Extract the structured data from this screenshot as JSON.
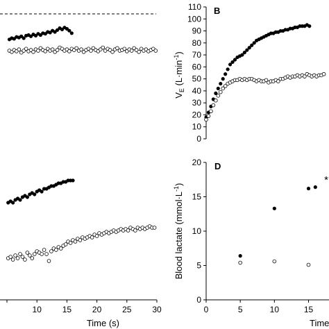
{
  "chart_data": [
    {
      "panel": "A",
      "panel_letter_visible": false,
      "type": "scatter",
      "xlabel": "",
      "ylabel": "",
      "xlim": [
        5,
        30
      ],
      "reference_line": {
        "style": "dashed"
      },
      "series": [
        {
          "marker": "filled",
          "x": [
            5.4,
            5.8,
            6.2,
            6.6,
            7.0,
            7.4,
            7.8,
            8.2,
            8.6,
            9.0,
            9.4,
            9.8,
            10.2,
            10.6,
            11.0,
            11.4,
            11.8,
            12.2,
            12.6,
            13.0,
            13.4,
            13.8,
            14.2,
            14.6,
            15.0,
            15.4,
            15.8
          ],
          "rel": [
            0.48,
            0.5,
            0.49,
            0.52,
            0.51,
            0.53,
            0.5,
            0.54,
            0.55,
            0.53,
            0.56,
            0.54,
            0.57,
            0.55,
            0.58,
            0.57,
            0.6,
            0.59,
            0.62,
            0.6,
            0.63,
            0.66,
            0.64,
            0.67,
            0.65,
            0.62,
            0.58
          ]
        },
        {
          "marker": "open",
          "x": [
            5.4,
            5.8,
            6.2,
            6.6,
            7.0,
            7.4,
            7.8,
            8.2,
            8.6,
            9.0,
            9.4,
            9.8,
            10.2,
            10.6,
            11.0,
            11.4,
            11.8,
            12.2,
            12.6,
            13.0,
            13.4,
            13.8,
            14.2,
            14.6,
            15.0,
            15.4,
            15.8,
            16.2,
            16.6,
            17.0,
            17.4,
            17.8,
            18.2,
            18.6,
            19.0,
            19.4,
            19.8,
            20.2,
            20.6,
            21.0,
            21.4,
            21.8,
            22.2,
            22.6,
            23.0,
            23.4,
            23.8,
            24.2,
            24.6,
            25.0,
            25.4,
            25.8,
            26.2,
            26.6,
            27.0,
            27.4,
            27.8,
            28.2,
            28.6,
            29.0,
            29.4,
            29.8
          ],
          "rel": [
            0.3,
            0.28,
            0.31,
            0.29,
            0.32,
            0.27,
            0.3,
            0.33,
            0.29,
            0.31,
            0.28,
            0.32,
            0.3,
            0.34,
            0.31,
            0.29,
            0.33,
            0.3,
            0.32,
            0.28,
            0.31,
            0.35,
            0.33,
            0.3,
            0.32,
            0.29,
            0.33,
            0.31,
            0.34,
            0.3,
            0.32,
            0.28,
            0.31,
            0.33,
            0.3,
            0.34,
            0.31,
            0.29,
            0.32,
            0.35,
            0.3,
            0.33,
            0.31,
            0.28,
            0.32,
            0.34,
            0.3,
            0.31,
            0.33,
            0.29,
            0.32,
            0.3,
            0.34,
            0.31,
            0.28,
            0.33,
            0.3,
            0.32,
            0.29,
            0.31,
            0.33,
            0.3
          ]
        }
      ]
    },
    {
      "panel": "B",
      "type": "scatter",
      "title": "B",
      "ylabel_main": "V",
      "ylabel_sub": "E",
      "ylabel_rest": " (L·min",
      "ylabel_sup": "-1",
      "ylabel_close": ")",
      "ylim": [
        0,
        110
      ],
      "yticks": [
        "0",
        "10",
        "20",
        "30",
        "40",
        "50",
        "60",
        "70",
        "80",
        "90",
        "100",
        "110"
      ],
      "series": [
        {
          "marker": "filled",
          "points": [
            [
              0,
              18
            ],
            [
              0.5,
              22
            ],
            [
              1,
              27
            ],
            [
              1.5,
              33
            ],
            [
              2,
              38
            ],
            [
              2.5,
              42
            ],
            [
              3,
              46
            ],
            [
              3.5,
              50
            ],
            [
              4,
              54
            ],
            [
              4.5,
              58
            ],
            [
              5,
              62
            ],
            [
              5.5,
              64
            ],
            [
              6,
              66
            ],
            [
              6.5,
              68
            ],
            [
              7,
              69
            ],
            [
              7.5,
              70
            ],
            [
              8,
              72
            ],
            [
              8.5,
              74
            ],
            [
              9,
              76
            ],
            [
              9.5,
              78
            ],
            [
              10,
              80
            ],
            [
              10.5,
              82
            ],
            [
              11,
              83
            ],
            [
              11.5,
              84
            ],
            [
              12,
              85
            ],
            [
              12.5,
              86
            ],
            [
              13,
              87
            ],
            [
              13.5,
              88
            ],
            [
              14,
              88
            ],
            [
              14.5,
              89
            ],
            [
              15,
              89
            ],
            [
              15.5,
              90
            ],
            [
              16,
              90
            ],
            [
              16.5,
              91
            ],
            [
              17,
              91
            ],
            [
              17.5,
              92
            ],
            [
              18,
              92
            ],
            [
              18.5,
              93
            ],
            [
              19,
              93
            ],
            [
              19.5,
              94
            ],
            [
              20,
              94
            ],
            [
              20.5,
              94
            ],
            [
              21,
              95
            ],
            [
              21.5,
              94
            ]
          ]
        },
        {
          "marker": "open",
          "points": [
            [
              0,
              16
            ],
            [
              0.5,
              19
            ],
            [
              1,
              23
            ],
            [
              1.5,
              28
            ],
            [
              2,
              32
            ],
            [
              2.5,
              36
            ],
            [
              3,
              39
            ],
            [
              3.5,
              42
            ],
            [
              4,
              44
            ],
            [
              4.5,
              46
            ],
            [
              5,
              47
            ],
            [
              5.5,
              48
            ],
            [
              6,
              49
            ],
            [
              6.5,
              49
            ],
            [
              7,
              50
            ],
            [
              7.5,
              49
            ],
            [
              8,
              50
            ],
            [
              8.5,
              49
            ],
            [
              9,
              50
            ],
            [
              9.5,
              50
            ],
            [
              10,
              49
            ],
            [
              10.5,
              48
            ],
            [
              11,
              49
            ],
            [
              11.5,
              48
            ],
            [
              12,
              48
            ],
            [
              12.5,
              49
            ],
            [
              13,
              47
            ],
            [
              13.5,
              48
            ],
            [
              14,
              48
            ],
            [
              14.5,
              49
            ],
            [
              15,
              48
            ],
            [
              15.5,
              50
            ],
            [
              16,
              50
            ],
            [
              16.5,
              51
            ],
            [
              17,
              52
            ],
            [
              17.5,
              51
            ],
            [
              18,
              52
            ],
            [
              18.5,
              52
            ],
            [
              19,
              53
            ],
            [
              19.5,
              52
            ],
            [
              20,
              53
            ],
            [
              20.5,
              52
            ],
            [
              21,
              54
            ],
            [
              21.5,
              53
            ],
            [
              22,
              52
            ],
            [
              22.5,
              53
            ],
            [
              23,
              52
            ],
            [
              23.5,
              53
            ],
            [
              24,
              53
            ],
            [
              24.5,
              54
            ]
          ]
        }
      ]
    },
    {
      "panel": "C",
      "panel_letter_visible": false,
      "type": "scatter",
      "xlabel": "Time (s)",
      "xticks": [
        "10",
        "15",
        "20",
        "25",
        "30"
      ],
      "xlim": [
        5,
        30
      ],
      "series": [
        {
          "marker": "filled",
          "x": [
            5.2,
            5.6,
            6.0,
            6.4,
            6.8,
            7.2,
            7.6,
            8.0,
            8.4,
            8.8,
            9.2,
            9.6,
            10.0,
            10.4,
            10.8,
            11.2,
            11.6,
            12.0,
            12.4,
            12.8,
            13.2,
            13.6,
            14.0,
            14.4,
            14.8,
            15.2,
            15.6,
            16.0
          ],
          "rel": [
            0.7,
            0.71,
            0.7,
            0.72,
            0.73,
            0.72,
            0.74,
            0.75,
            0.74,
            0.76,
            0.77,
            0.76,
            0.78,
            0.79,
            0.78,
            0.8,
            0.8,
            0.81,
            0.82,
            0.82,
            0.83,
            0.84,
            0.84,
            0.85,
            0.85,
            0.86,
            0.86,
            0.86
          ]
        },
        {
          "marker": "open",
          "x": [
            5.2,
            5.6,
            6.0,
            6.4,
            6.8,
            7.2,
            7.6,
            8.0,
            8.4,
            8.8,
            9.2,
            9.6,
            10.0,
            10.4,
            10.8,
            11.2,
            11.6,
            12.0,
            12.4,
            12.8,
            13.2,
            13.6,
            14.0,
            14.4,
            14.8,
            15.2,
            15.6,
            16.0,
            16.4,
            16.8,
            17.2,
            17.6,
            18.0,
            18.4,
            18.8,
            19.2,
            19.6,
            20.0,
            20.4,
            20.8,
            21.2,
            21.6,
            22.0,
            22.4,
            22.8,
            23.2,
            23.6,
            24.0,
            24.4,
            24.8,
            25.2,
            25.6,
            26.0,
            26.4,
            26.8,
            27.2,
            27.6,
            28.0,
            28.4,
            28.8,
            29.2,
            29.6
          ],
          "rel": [
            0.3,
            0.31,
            0.29,
            0.32,
            0.3,
            0.33,
            0.31,
            0.29,
            0.34,
            0.32,
            0.3,
            0.33,
            0.35,
            0.34,
            0.33,
            0.36,
            0.33,
            0.28,
            0.35,
            0.37,
            0.36,
            0.38,
            0.37,
            0.39,
            0.4,
            0.42,
            0.41,
            0.43,
            0.42,
            0.44,
            0.43,
            0.45,
            0.44,
            0.45,
            0.46,
            0.45,
            0.47,
            0.46,
            0.48,
            0.47,
            0.48,
            0.49,
            0.48,
            0.49,
            0.5,
            0.49,
            0.5,
            0.51,
            0.5,
            0.51,
            0.5,
            0.52,
            0.51,
            0.5,
            0.52,
            0.51,
            0.52,
            0.51,
            0.52,
            0.53,
            0.52,
            0.52
          ]
        }
      ]
    },
    {
      "panel": "D",
      "type": "scatter",
      "title": "D",
      "xlabel": "Time (s)",
      "ylabel_main": "Blood lactate (mmol·L",
      "ylabel_sup": "-1",
      "ylabel_close": ")",
      "xlim": [
        0,
        18
      ],
      "ylim": [
        0,
        20
      ],
      "xticks": [
        "0",
        "5",
        "10",
        "15"
      ],
      "yticks": [
        "0",
        "5",
        "10",
        "15",
        "20"
      ],
      "annotation": "*",
      "series": [
        {
          "marker": "filled",
          "points": [
            [
              5,
              6.4
            ],
            [
              10,
              13.3
            ],
            [
              15,
              16.2
            ],
            [
              16,
              16.4
            ]
          ]
        },
        {
          "marker": "open",
          "points": [
            [
              5,
              5.4
            ],
            [
              10,
              5.6
            ],
            [
              15,
              5.1
            ]
          ]
        }
      ]
    }
  ]
}
